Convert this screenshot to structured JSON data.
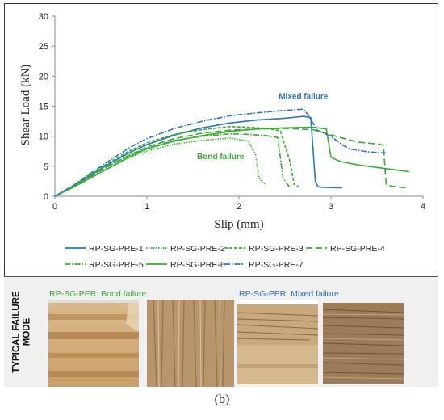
{
  "chart_data": {
    "type": "line",
    "xlabel": "Slip (mm)",
    "ylabel": "Shear Load (kN)",
    "xlim": [
      0,
      4
    ],
    "ylim": [
      0,
      30
    ],
    "x_ticks": [
      0,
      1,
      2,
      3,
      4
    ],
    "y_ticks": [
      0,
      5,
      10,
      15,
      20,
      25,
      30
    ],
    "grid": false,
    "legend_position": "bottom",
    "series": [
      {
        "name": "RP-SG-PRE-1",
        "color": "#2e75b6",
        "dash": "solid",
        "x": [
          0,
          0.2,
          0.5,
          0.8,
          1.0,
          1.3,
          1.6,
          1.9,
          2.2,
          2.5,
          2.7,
          2.78,
          2.8,
          2.83,
          2.86,
          2.9,
          3.12
        ],
        "y": [
          0,
          1.7,
          4.6,
          7.2,
          8.6,
          10.2,
          11.4,
          12.2,
          12.7,
          13.0,
          13.3,
          13.1,
          9.0,
          2.5,
          1.6,
          1.5,
          1.4
        ]
      },
      {
        "name": "RP-SG-PRE-2",
        "color": "#3aaa35",
        "dash": "1.5,1.5",
        "x": [
          0,
          0.2,
          0.5,
          0.8,
          1.0,
          1.3,
          1.6,
          1.9,
          2.1,
          2.18,
          2.22,
          2.26,
          2.3
        ],
        "y": [
          0,
          1.5,
          4.0,
          6.4,
          7.5,
          8.7,
          9.3,
          9.7,
          9.2,
          7.0,
          3.0,
          2.2,
          2.0
        ]
      },
      {
        "name": "RP-SG-PRE-3",
        "color": "#3aaa35",
        "dash": "4,2",
        "x": [
          0,
          0.2,
          0.5,
          0.8,
          1.0,
          1.3,
          1.6,
          1.9,
          2.1,
          2.3,
          2.45,
          2.55,
          2.6,
          2.65
        ],
        "y": [
          0,
          1.8,
          4.8,
          7.5,
          8.9,
          10.3,
          11.1,
          11.6,
          11.5,
          11.3,
          10.9,
          6.0,
          2.0,
          1.6
        ]
      },
      {
        "name": "RP-SG-PRE-4",
        "color": "#3aaa35",
        "dash": "8,4",
        "x": [
          0,
          0.2,
          0.5,
          0.8,
          1.0,
          1.3,
          1.6,
          1.9,
          2.2,
          2.5,
          2.8,
          3.1,
          3.3,
          3.5,
          3.57,
          3.6,
          3.65,
          3.82
        ],
        "y": [
          0,
          1.6,
          4.4,
          6.8,
          8.2,
          9.6,
          10.5,
          11.0,
          11.2,
          11.3,
          11.1,
          9.8,
          9.0,
          8.7,
          8.5,
          2.0,
          1.7,
          1.4
        ]
      },
      {
        "name": "RP-SG-PRE-5",
        "color": "#3aaa35",
        "dash": "7,2,1.5,2",
        "x": [
          0,
          0.2,
          0.5,
          0.8,
          1.0,
          1.3,
          1.6,
          1.9,
          2.1,
          2.3,
          2.42,
          2.48,
          2.55
        ],
        "y": [
          0,
          1.6,
          4.3,
          6.8,
          8.0,
          9.3,
          10.0,
          10.4,
          10.3,
          10.1,
          9.8,
          3.0,
          1.5
        ]
      },
      {
        "name": "RP-SG-PRE-6",
        "color": "#3aaa35",
        "dash": "solid",
        "x": [
          0,
          0.2,
          0.5,
          0.8,
          1.0,
          1.3,
          1.6,
          1.9,
          2.2,
          2.5,
          2.8,
          2.95,
          3.0,
          3.1,
          3.3,
          3.6,
          3.85
        ],
        "y": [
          0,
          1.5,
          4.0,
          6.5,
          7.9,
          9.2,
          10.1,
          10.8,
          11.2,
          11.4,
          11.5,
          11.2,
          6.5,
          5.8,
          5.2,
          4.6,
          4.1
        ]
      },
      {
        "name": "RP-SG-PRE-7",
        "color": "#2e75b6",
        "dash": "7,2,1.5,2",
        "x": [
          0,
          0.2,
          0.5,
          0.8,
          1.0,
          1.3,
          1.6,
          1.9,
          2.2,
          2.5,
          2.7,
          2.75,
          2.85,
          3.0,
          3.1,
          3.2,
          3.4,
          3.6
        ],
        "y": [
          0,
          1.8,
          5.0,
          8.0,
          9.6,
          11.3,
          12.5,
          13.4,
          13.9,
          14.3,
          14.5,
          13.6,
          11.0,
          10.0,
          8.8,
          7.9,
          7.4,
          7.2
        ]
      }
    ],
    "annotations": [
      {
        "text": "Mixed failure",
        "x": 2.7,
        "y": 16.2,
        "color": "#2e75b6"
      },
      {
        "text": "Bond failure",
        "x": 1.8,
        "y": 6.2,
        "color": "#3aaa35"
      }
    ]
  },
  "failure_panel": {
    "side_label_line1": "TYPICAL FAILURE",
    "side_label_line2": "MODE",
    "bond_caption": "RP-SG-PER: Bond failure",
    "bond_color": "#3aaa35",
    "mixed_caption": "RP-SG-PER: Mixed failure",
    "mixed_color": "#2e75b6"
  },
  "panel_letter": "(b)"
}
